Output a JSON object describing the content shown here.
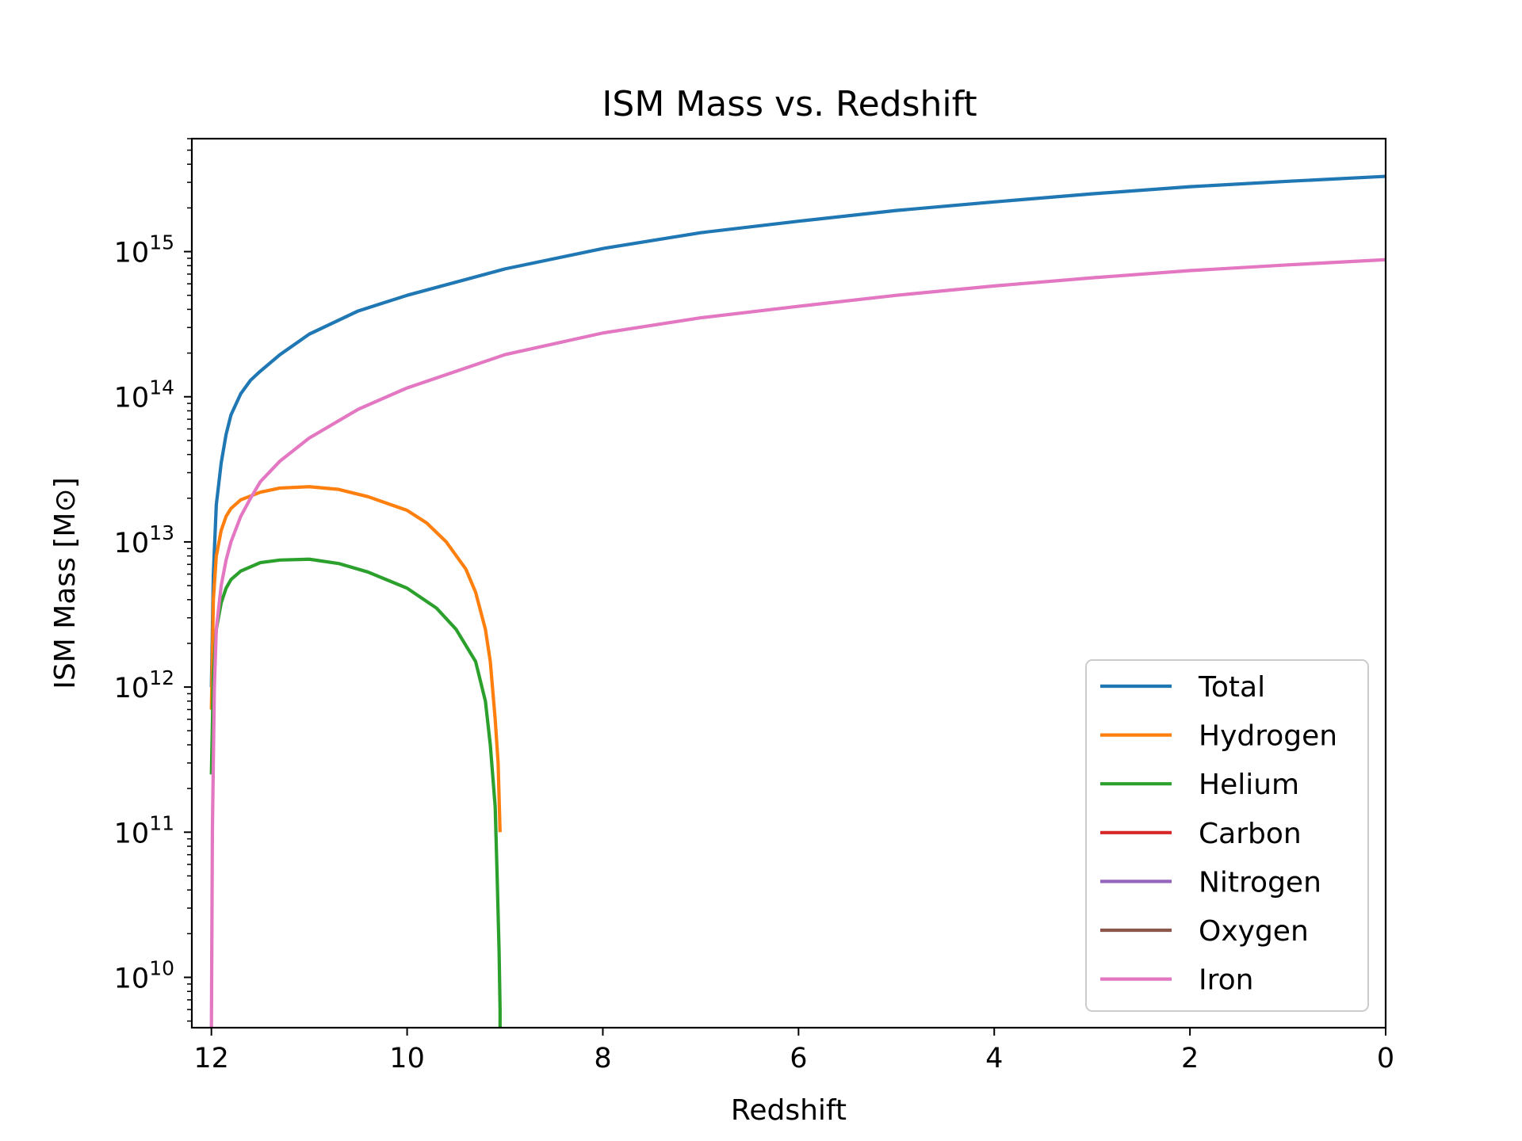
{
  "chart_data": {
    "type": "line",
    "title": "ISM Mass vs. Redshift",
    "xlabel": "Redshift",
    "ylabel": "ISM Mass [M⊙]",
    "xlim": [
      12.2,
      0
    ],
    "ylim": [
      4500000000.0,
      6000000000000000.0
    ],
    "yscale": "log",
    "x_inverted": true,
    "grid": false,
    "legend_position": "lower right",
    "x_ticks": [
      {
        "value": 12,
        "label": "12"
      },
      {
        "value": 10,
        "label": "10"
      },
      {
        "value": 8,
        "label": "8"
      },
      {
        "value": 6,
        "label": "6"
      },
      {
        "value": 4,
        "label": "4"
      },
      {
        "value": 2,
        "label": "2"
      },
      {
        "value": 0,
        "label": "0"
      }
    ],
    "y_ticks": [
      {
        "value": 10000000000.0,
        "base": "10",
        "exp": "10"
      },
      {
        "value": 100000000000.0,
        "base": "10",
        "exp": "11"
      },
      {
        "value": 1000000000000.0,
        "base": "10",
        "exp": "12"
      },
      {
        "value": 10000000000000.0,
        "base": "10",
        "exp": "13"
      },
      {
        "value": 100000000000000.0,
        "base": "10",
        "exp": "14"
      },
      {
        "value": 1000000000000000.0,
        "base": "10",
        "exp": "15"
      }
    ],
    "series": [
      {
        "name": "Total",
        "color": "#1f77b4",
        "x": [
          12.0,
          11.98,
          11.95,
          11.9,
          11.85,
          11.8,
          11.7,
          11.6,
          11.5,
          11.3,
          11.0,
          10.5,
          10.0,
          9.0,
          8.0,
          7.0,
          6.0,
          5.0,
          4.0,
          3.0,
          2.0,
          1.0,
          0.0
        ],
        "y": [
          1000000000000.0,
          6000000000000.0,
          18000000000000.0,
          35000000000000.0,
          55000000000000.0,
          75000000000000.0,
          105000000000000.0,
          130000000000000.0,
          150000000000000.0,
          195000000000000.0,
          270000000000000.0,
          390000000000000.0,
          500000000000000.0,
          760000000000000.0,
          1050000000000000.0,
          1350000000000000.0,
          1620000000000000.0,
          1920000000000000.0,
          2200000000000000.0,
          2500000000000000.0,
          2800000000000000.0,
          3050000000000000.0,
          3300000000000000.0
        ]
      },
      {
        "name": "Hydrogen",
        "color": "#ff7f0e",
        "x": [
          12.0,
          11.98,
          11.95,
          11.9,
          11.85,
          11.8,
          11.7,
          11.5,
          11.3,
          11.0,
          10.7,
          10.4,
          10.0,
          9.8,
          9.6,
          9.4,
          9.3,
          9.2,
          9.15,
          9.1,
          9.07,
          9.05
        ],
        "y": [
          700000000000.0,
          4000000000000.0,
          8000000000000.0,
          12000000000000.0,
          15000000000000.0,
          17000000000000.0,
          19500000000000.0,
          22000000000000.0,
          23500000000000.0,
          24000000000000.0,
          23000000000000.0,
          20500000000000.0,
          16500000000000.0,
          13500000000000.0,
          10000000000000.0,
          6500000000000.0,
          4500000000000.0,
          2500000000000.0,
          1500000000000.0,
          600000000000.0,
          300000000000.0,
          100000000000.0
        ]
      },
      {
        "name": "Helium",
        "color": "#2ca02c",
        "x": [
          12.0,
          11.98,
          11.95,
          11.9,
          11.85,
          11.8,
          11.7,
          11.5,
          11.3,
          11.0,
          10.7,
          10.4,
          10.0,
          9.7,
          9.5,
          9.3,
          9.2,
          9.15,
          9.1,
          9.08,
          9.06,
          9.05,
          9.05
        ],
        "y": [
          250000000000.0,
          1200000000000.0,
          2500000000000.0,
          3800000000000.0,
          4800000000000.0,
          5500000000000.0,
          6300000000000.0,
          7200000000000.0,
          7500000000000.0,
          7600000000000.0,
          7100000000000.0,
          6200000000000.0,
          4800000000000.0,
          3500000000000.0,
          2500000000000.0,
          1500000000000.0,
          800000000000.0,
          400000000000.0,
          150000000000.0,
          50000000000.0,
          15000000000.0,
          6000000000.0,
          4500000000.0
        ]
      },
      {
        "name": "Carbon",
        "color": "#d62728",
        "x": [],
        "y": []
      },
      {
        "name": "Nitrogen",
        "color": "#9467bd",
        "x": [],
        "y": []
      },
      {
        "name": "Oxygen",
        "color": "#8c564b",
        "x": [],
        "y": []
      },
      {
        "name": "Iron",
        "color": "#e377c2",
        "x": [
          12.0,
          11.99,
          11.97,
          11.95,
          11.9,
          11.85,
          11.8,
          11.7,
          11.6,
          11.5,
          11.3,
          11.0,
          10.5,
          10.0,
          9.0,
          8.0,
          7.0,
          6.0,
          5.0,
          4.0,
          3.0,
          2.0,
          1.0,
          0.0
        ],
        "y": [
          4500000000.0,
          100000000000.0,
          1000000000000.0,
          2500000000000.0,
          5000000000000.0,
          7500000000000.0,
          10000000000000.0,
          15000000000000.0,
          20000000000000.0,
          26000000000000.0,
          36000000000000.0,
          52000000000000.0,
          82000000000000.0,
          115000000000000.0,
          195000000000000.0,
          275000000000000.0,
          350000000000000.0,
          420000000000000.0,
          500000000000000.0,
          580000000000000.0,
          660000000000000.0,
          740000000000000.0,
          810000000000000.0,
          880000000000000.0
        ]
      }
    ]
  }
}
